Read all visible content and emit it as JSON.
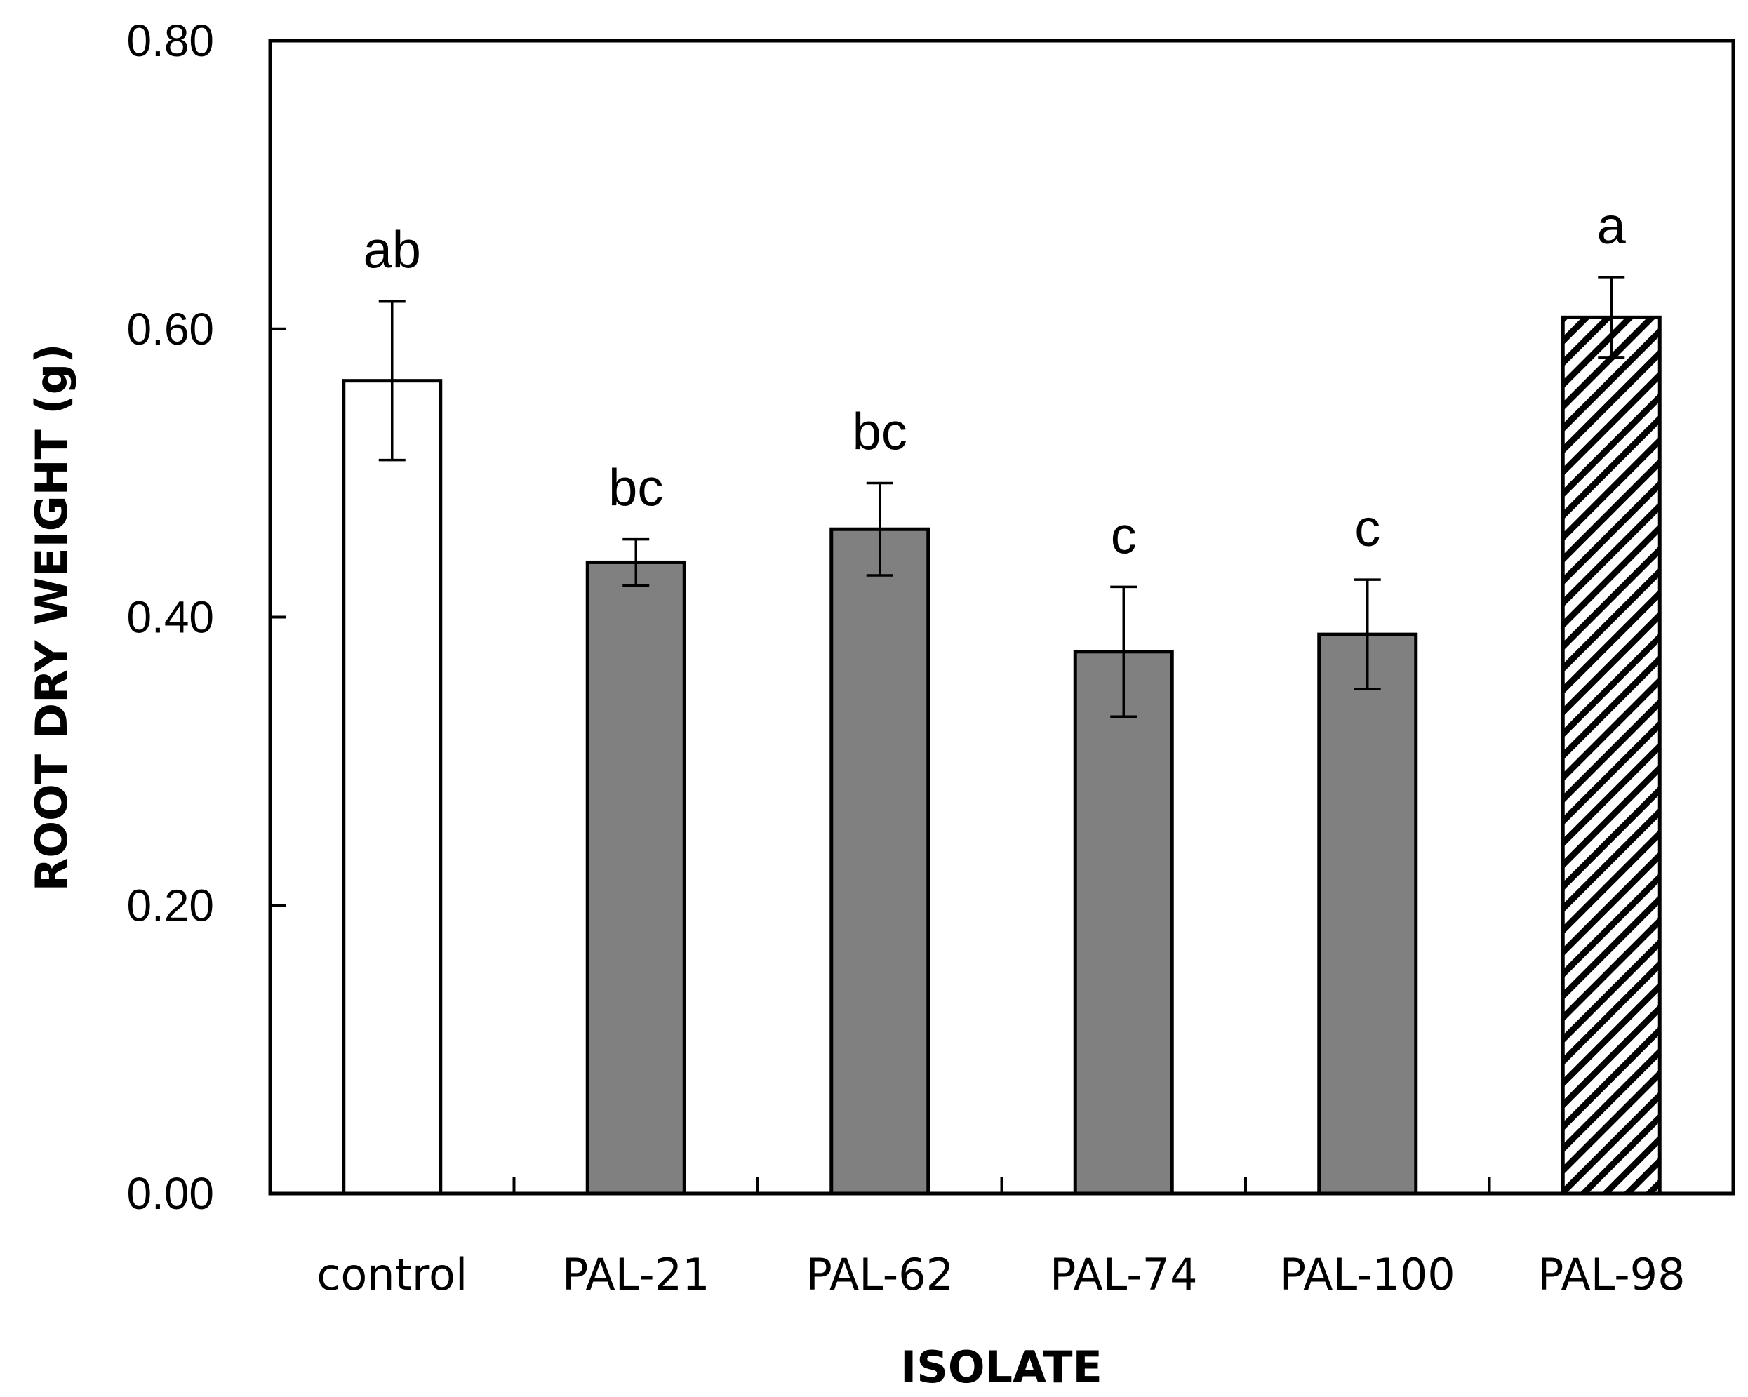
{
  "chart_data": {
    "type": "bar",
    "title": "",
    "xlabel": "ISOLATE",
    "ylabel": "ROOT DRY WEIGHT (g)",
    "ylim": [
      0,
      0.8
    ],
    "yticks": [
      "0.00",
      "0.20",
      "0.40",
      "0.60",
      "0.80"
    ],
    "ytick_values": [
      0,
      0.2,
      0.4,
      0.6,
      0.8
    ],
    "categories": [
      "control",
      "PAL-21",
      "PAL-62",
      "PAL-74",
      "PAL-100",
      "PAL-98"
    ],
    "values": [
      0.564,
      0.438,
      0.461,
      0.376,
      0.388,
      0.608
    ],
    "errors": [
      0.055,
      0.016,
      0.032,
      0.045,
      0.038,
      0.028
    ],
    "significance_letters": [
      "ab",
      "bc",
      "bc",
      "c",
      "c",
      "a"
    ],
    "bar_styles": [
      "white",
      "gray",
      "gray",
      "gray",
      "gray",
      "hatched"
    ],
    "colors": {
      "gray": "#808080",
      "white": "#ffffff",
      "hatch": "#000000",
      "axis": "#000000"
    }
  }
}
